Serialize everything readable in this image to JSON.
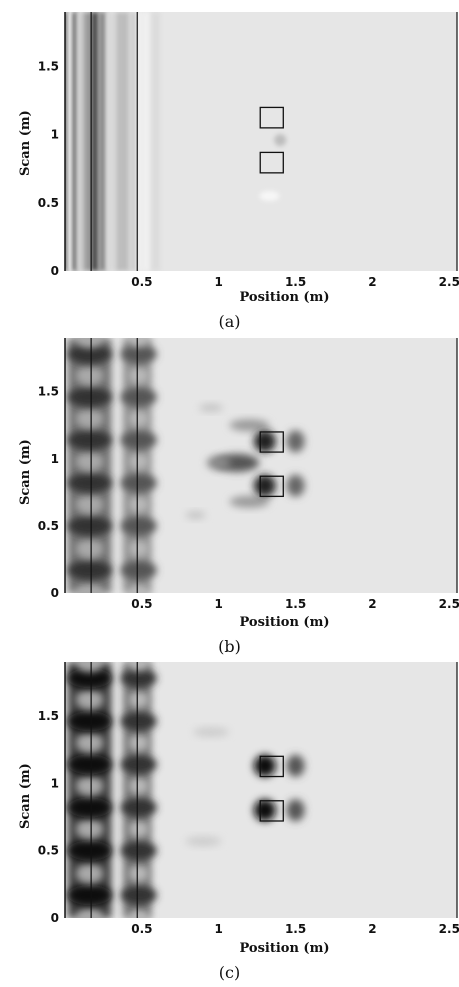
{
  "figure": {
    "panels": [
      {
        "id": "a",
        "caption": "(a)"
      },
      {
        "id": "b",
        "caption": "(b)"
      },
      {
        "id": "c",
        "caption": "(c)"
      }
    ],
    "xlabel": "Position (m)",
    "ylabel": "Scan (m)",
    "xticks": [
      "0.5",
      "1",
      "1.5",
      "2",
      "2.5"
    ],
    "yticks": [
      "0",
      "0.5",
      "1",
      "1.5"
    ]
  },
  "chart_data": [
    {
      "type": "heatmap",
      "panel": "(a)",
      "xlabel": "Position (m)",
      "ylabel": "Scan (m)",
      "xlim": [
        0,
        2.55
      ],
      "ylim": [
        0,
        1.9
      ],
      "xticks": [
        0.5,
        1,
        1.5,
        2,
        2.5
      ],
      "yticks": [
        0,
        0.5,
        1,
        1.5
      ],
      "vertical_lines_x": [
        0.0,
        0.17,
        0.47,
        2.55
      ],
      "targets": [
        {
          "x": [
            1.27,
            1.42
          ],
          "y": [
            1.05,
            1.2
          ]
        },
        {
          "x": [
            1.27,
            1.42
          ],
          "y": [
            0.72,
            0.87
          ]
        }
      ]
    },
    {
      "type": "heatmap",
      "panel": "(b)",
      "xlabel": "Position (m)",
      "ylabel": "Scan (m)",
      "xlim": [
        0,
        2.55
      ],
      "ylim": [
        0,
        1.9
      ],
      "xticks": [
        0.5,
        1,
        1.5,
        2,
        2.5
      ],
      "yticks": [
        0,
        0.5,
        1,
        1.5
      ],
      "vertical_lines_x": [
        0.0,
        0.17,
        0.47,
        2.55
      ],
      "targets": [
        {
          "x": [
            1.27,
            1.42
          ],
          "y": [
            1.05,
            1.2
          ]
        },
        {
          "x": [
            1.27,
            1.42
          ],
          "y": [
            0.72,
            0.87
          ]
        }
      ]
    },
    {
      "type": "heatmap",
      "panel": "(c)",
      "xlabel": "Position (m)",
      "ylabel": "Scan (m)",
      "xlim": [
        0,
        2.55
      ],
      "ylim": [
        0,
        1.9
      ],
      "xticks": [
        0.5,
        1,
        1.5,
        2,
        2.5
      ],
      "yticks": [
        0,
        0.5,
        1,
        1.5
      ],
      "vertical_lines_x": [
        0.0,
        0.17,
        0.47,
        2.55
      ],
      "targets": [
        {
          "x": [
            1.27,
            1.42
          ],
          "y": [
            1.05,
            1.2
          ]
        },
        {
          "x": [
            1.27,
            1.42
          ],
          "y": [
            0.72,
            0.87
          ]
        }
      ]
    }
  ]
}
